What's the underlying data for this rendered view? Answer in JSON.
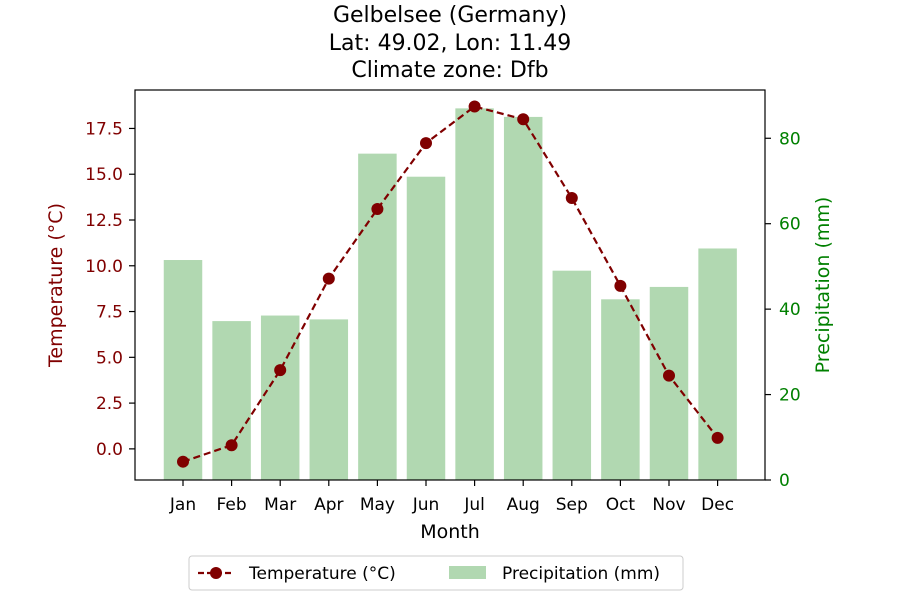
{
  "chart_data": {
    "type": "bar+line",
    "title_lines": [
      "Gelbelsee (Germany)",
      "Lat: 49.02, Lon: 11.49",
      "Climate zone: Dfb"
    ],
    "xlabel": "Month",
    "categories": [
      "Jan",
      "Feb",
      "Mar",
      "Apr",
      "May",
      "Jun",
      "Jul",
      "Aug",
      "Sep",
      "Oct",
      "Nov",
      "Dec"
    ],
    "temperature": {
      "name": "Temperature (°C)",
      "axis_label": "Temperature (°C)",
      "values": [
        -0.7,
        0.2,
        4.3,
        9.3,
        13.1,
        16.7,
        18.7,
        18.0,
        13.7,
        8.9,
        4.0,
        0.6
      ],
      "ylim": [
        -1.7,
        19.6
      ],
      "ticks": [
        0.0,
        2.5,
        5.0,
        7.5,
        10.0,
        12.5,
        15.0,
        17.5
      ],
      "tick_labels": [
        "0.0",
        "2.5",
        "5.0",
        "7.5",
        "10.0",
        "12.5",
        "15.0",
        "17.5"
      ],
      "color": "#800000"
    },
    "precipitation": {
      "name": "Precipitation (mm)",
      "axis_label": "Precipitation (mm)",
      "values": [
        51.5,
        37.2,
        38.5,
        37.6,
        76.4,
        71.0,
        87.0,
        85.0,
        49.0,
        42.3,
        45.2,
        54.2
      ],
      "ylim": [
        0,
        91.3
      ],
      "ticks": [
        0,
        20,
        40,
        60,
        80
      ],
      "tick_labels": [
        "0",
        "20",
        "40",
        "60",
        "80"
      ],
      "bar_color": "#b1d8b1",
      "axis_color": "#008000"
    },
    "legend_placement": "bottom-center",
    "grid": false
  }
}
